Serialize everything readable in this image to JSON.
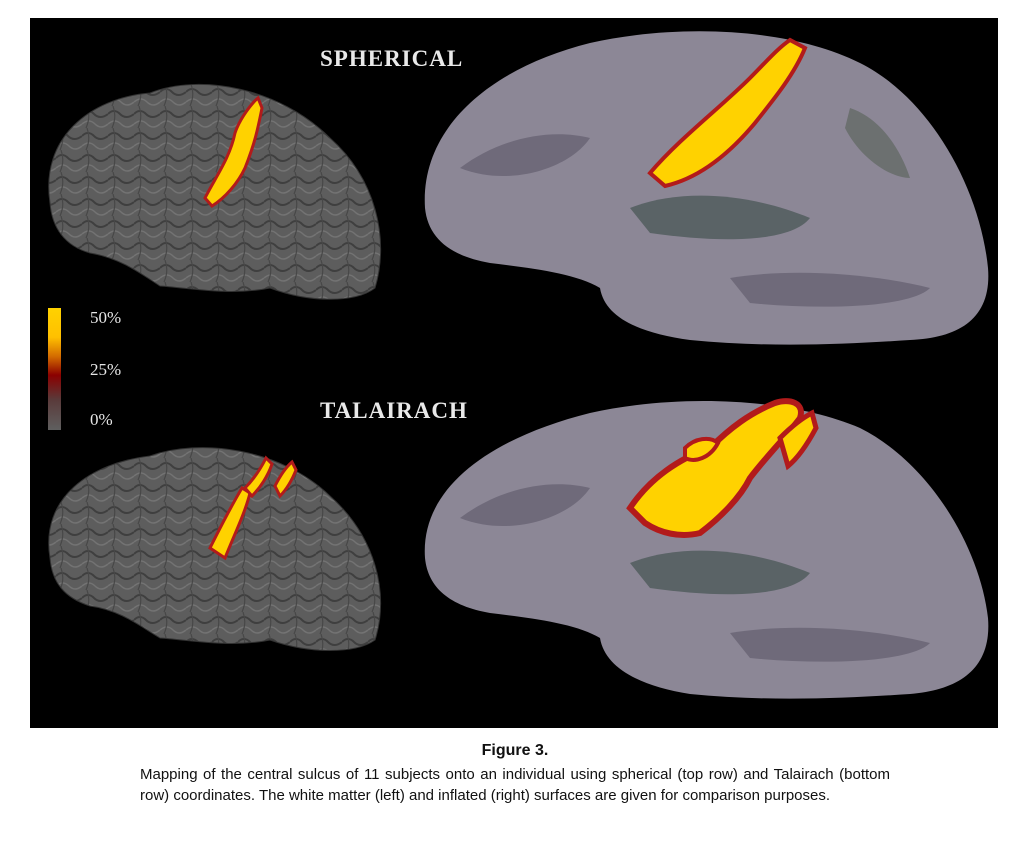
{
  "figure": {
    "labels": {
      "top": "SPHERICAL",
      "bottom": "TALAIRACH"
    },
    "legend": {
      "ticks": [
        "50%",
        "25%",
        "0%"
      ]
    },
    "colors": {
      "background": "#000000",
      "brain": "#5d5d5d",
      "inflated": "#8c8796",
      "high": "#ffd200",
      "mid": "#c01a1a"
    }
  },
  "caption": {
    "title": "Figure 3.",
    "text": "Mapping of the central sulcus of 11 subjects onto an individual using spherical (top row) and Talairach (bottom row) coordinates. The white matter (left) and inflated (right) surfaces are given for comparison purposes."
  }
}
